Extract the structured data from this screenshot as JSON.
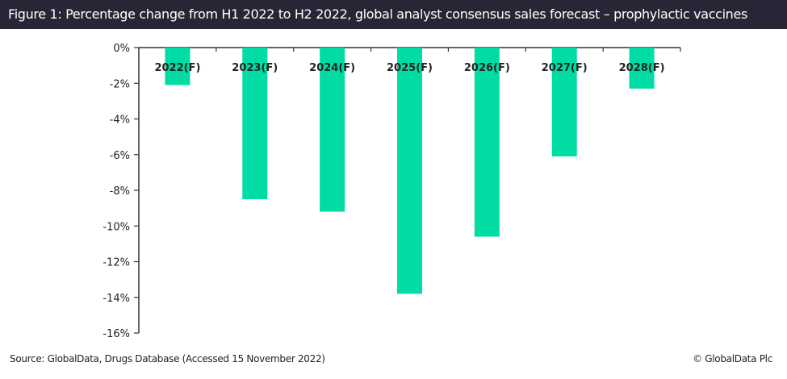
{
  "title": "Figure 1: Percentage change from H1 2022 to H2 2022, global analyst consensus sales forecast – prophylactic vaccines",
  "footer": {
    "source": "Source: GlobalData, Drugs Database (Accessed 15 November 2022)",
    "copyright": "© GlobalData Plc"
  },
  "colors": {
    "bar": "#00dca3",
    "header_bg": "#2a2536",
    "axis": "#333333"
  },
  "chart_data": {
    "type": "bar",
    "title": "Figure 1: Percentage change from H1 2022 to H2 2022, global analyst consensus sales forecast – prophylactic vaccines",
    "xlabel": "",
    "ylabel": "",
    "categories": [
      "2022(F)",
      "2023(F)",
      "2024(F)",
      "2025(F)",
      "2026(F)",
      "2027(F)",
      "2028(F)"
    ],
    "values": [
      -2.1,
      -8.5,
      -9.2,
      -13.8,
      -10.6,
      -6.1,
      -2.3
    ],
    "unit": "%",
    "ylim": [
      -16,
      0
    ],
    "yticks": [
      0,
      -2,
      -4,
      -6,
      -8,
      -10,
      -12,
      -14,
      -16
    ],
    "ytick_labels": [
      "0%",
      "-2%",
      "-4%",
      "-6%",
      "-8%",
      "-10%",
      "-12%",
      "-14%",
      "-16%"
    ],
    "grid": false,
    "legend": "none"
  }
}
